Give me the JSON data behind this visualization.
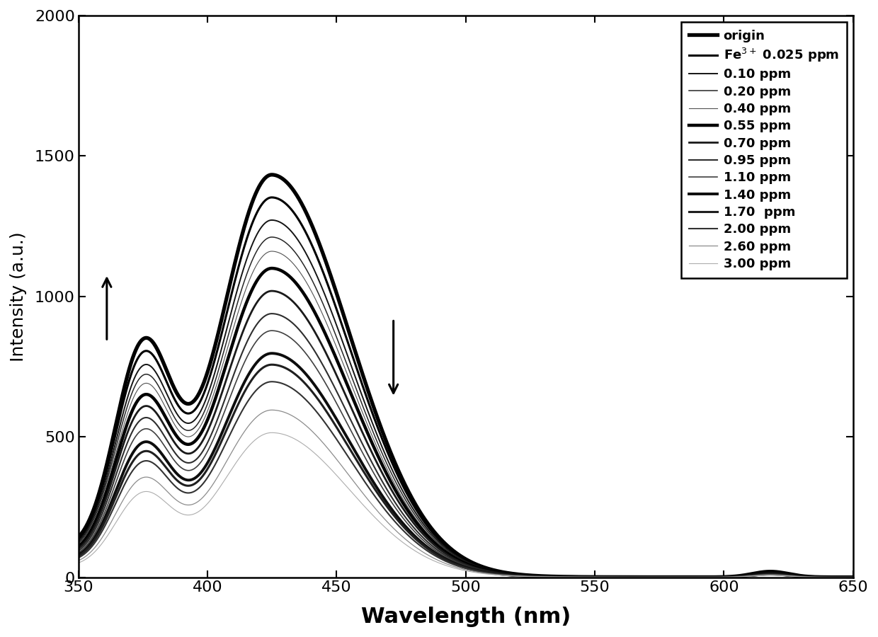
{
  "xlabel": "Wavelength (nm)",
  "ylabel": "Intensity (a.u.)",
  "xlim": [
    350,
    650
  ],
  "ylim": [
    0,
    2000
  ],
  "xticks": [
    350,
    400,
    450,
    500,
    550,
    600,
    650
  ],
  "yticks": [
    0,
    500,
    1000,
    1500,
    2000
  ],
  "series": [
    {
      "label": "origin",
      "peak1": 1420,
      "peak2": 740,
      "linewidth": 3.8,
      "gray": 0.0
    },
    {
      "label": "Fe$^{3+}$ 0.025 ppm",
      "peak1": 1340,
      "peak2": 700,
      "linewidth": 2.2,
      "gray": 0.0
    },
    {
      "label": "0.10 ppm",
      "peak1": 1260,
      "peak2": 658,
      "linewidth": 1.4,
      "gray": 0.08
    },
    {
      "label": "0.20 ppm",
      "peak1": 1200,
      "peak2": 628,
      "linewidth": 1.1,
      "gray": 0.15
    },
    {
      "label": "0.40 ppm",
      "peak1": 1150,
      "peak2": 600,
      "linewidth": 0.8,
      "gray": 0.32
    },
    {
      "label": "0.55 ppm",
      "peak1": 1090,
      "peak2": 565,
      "linewidth": 3.2,
      "gray": 0.0
    },
    {
      "label": "0.70 ppm",
      "peak1": 1010,
      "peak2": 530,
      "linewidth": 2.0,
      "gray": 0.1
    },
    {
      "label": "0.95 ppm",
      "peak1": 930,
      "peak2": 495,
      "linewidth": 1.5,
      "gray": 0.18
    },
    {
      "label": "1.10 ppm",
      "peak1": 870,
      "peak2": 460,
      "linewidth": 1.2,
      "gray": 0.25
    },
    {
      "label": "1.40 ppm",
      "peak1": 790,
      "peak2": 420,
      "linewidth": 2.8,
      "gray": 0.05
    },
    {
      "label": "1.70  ppm",
      "peak1": 750,
      "peak2": 390,
      "linewidth": 2.2,
      "gray": 0.12
    },
    {
      "label": "2.00 ppm",
      "peak1": 690,
      "peak2": 360,
      "linewidth": 1.5,
      "gray": 0.2
    },
    {
      "label": "2.60 ppm",
      "peak1": 590,
      "peak2": 310,
      "linewidth": 0.9,
      "gray": 0.55
    },
    {
      "label": "3.00 ppm",
      "peak1": 510,
      "peak2": 265,
      "linewidth": 0.8,
      "gray": 0.68
    }
  ],
  "xlabel_fontsize": 22,
  "ylabel_fontsize": 18,
  "tick_fontsize": 16,
  "legend_fontsize": 13
}
